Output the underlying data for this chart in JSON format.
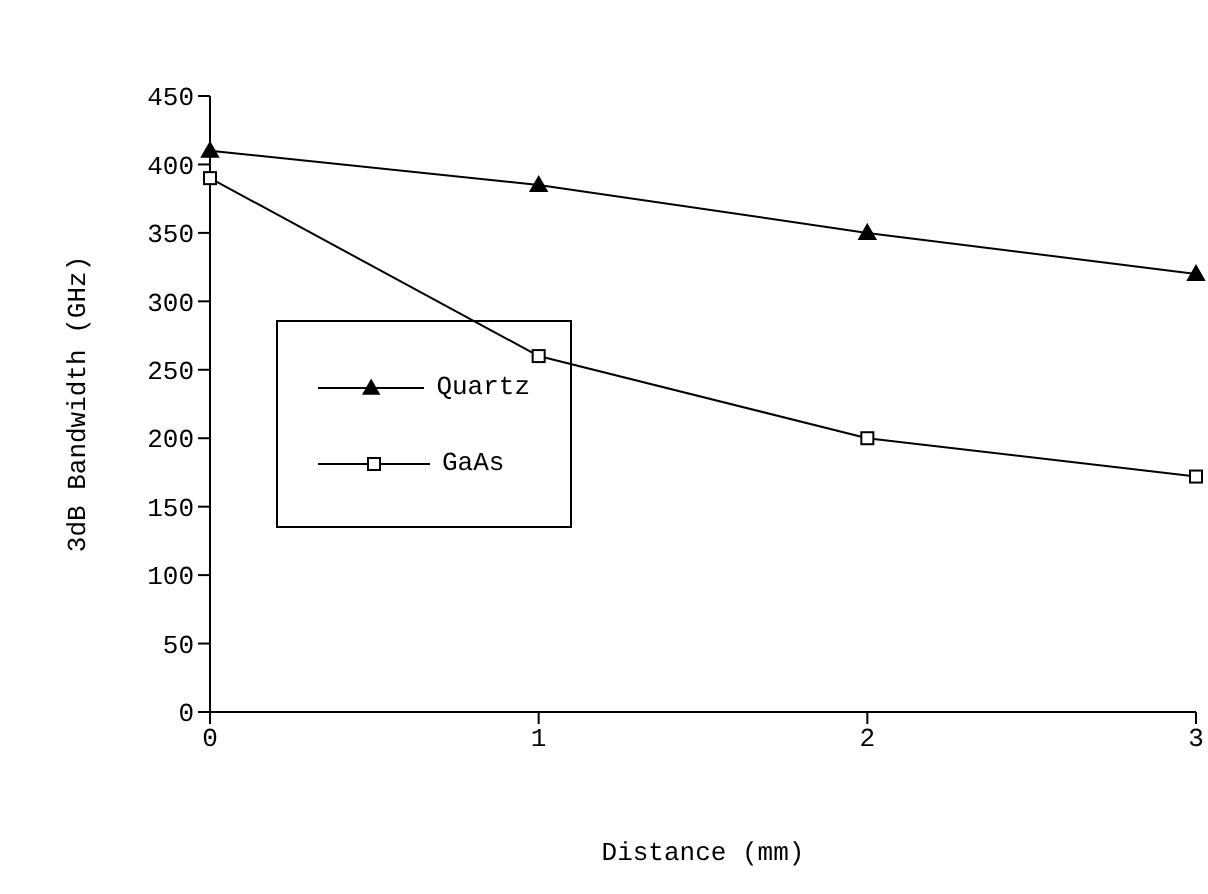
{
  "chart_data": {
    "type": "line",
    "xlabel": "Distance (mm)",
    "ylabel": "3dB Bandwidth (GHz)",
    "x": [
      0,
      1,
      2,
      3
    ],
    "series": [
      {
        "name": "Quartz",
        "color": "#000000",
        "marker": "triangle",
        "values": [
          410,
          385,
          350,
          320
        ]
      },
      {
        "name": "GaAs",
        "color": "#000000",
        "marker": "square",
        "values": [
          390,
          260,
          200,
          172
        ]
      }
    ],
    "xlim": [
      0,
      3
    ],
    "xticks": [
      0,
      1,
      2,
      3
    ],
    "ylim": [
      0,
      450
    ],
    "yticks": [
      0,
      50,
      100,
      150,
      200,
      250,
      300,
      350,
      400,
      450
    ],
    "grid": false,
    "legend": "bottom left",
    "line_style": "solid"
  }
}
